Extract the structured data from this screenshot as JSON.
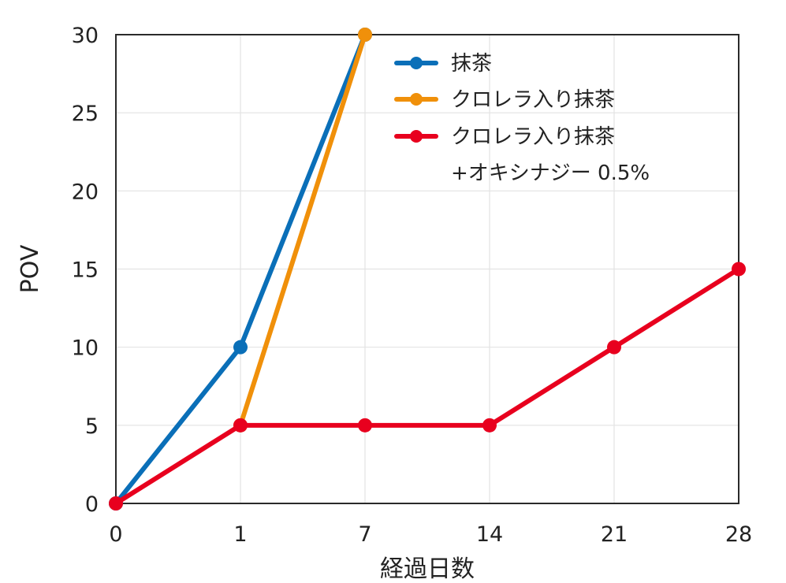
{
  "chart_data": {
    "type": "line",
    "title": "",
    "xlabel": "経過日数",
    "ylabel": "POV",
    "categories": [
      "0",
      "1",
      "7",
      "14",
      "21",
      "28"
    ],
    "ylim": [
      0,
      30
    ],
    "yticks": [
      0,
      5,
      10,
      15,
      20,
      25,
      30
    ],
    "grid": true,
    "legend_position": "top-right",
    "series": [
      {
        "name": "抹茶",
        "color": "#0a6fb8",
        "points": [
          {
            "x": "0",
            "y": 0
          },
          {
            "x": "1",
            "y": 10
          },
          {
            "x": "7",
            "y": 30
          }
        ]
      },
      {
        "name": "クロレラ入り抹茶",
        "color": "#f0900a",
        "points": [
          {
            "x": "1",
            "y": 5
          },
          {
            "x": "7",
            "y": 30
          }
        ]
      },
      {
        "name": "クロレラ入り抹茶",
        "name_line2": "+オキシナジー 0.5%",
        "color": "#e8001e",
        "points": [
          {
            "x": "0",
            "y": 0
          },
          {
            "x": "1",
            "y": 5
          },
          {
            "x": "7",
            "y": 5
          },
          {
            "x": "14",
            "y": 5
          },
          {
            "x": "21",
            "y": 10
          },
          {
            "x": "28",
            "y": 15
          }
        ]
      }
    ]
  }
}
